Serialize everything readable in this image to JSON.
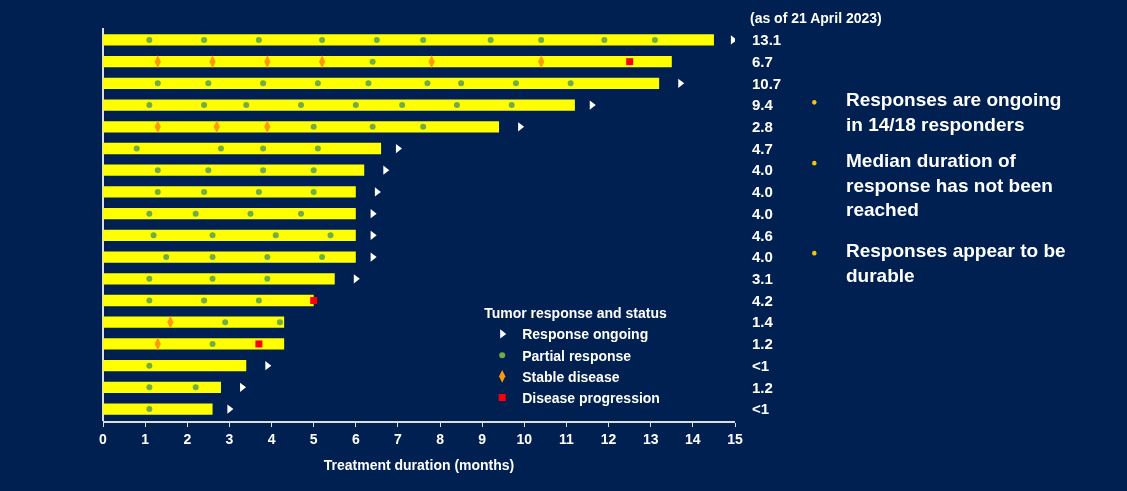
{
  "chart_data": {
    "type": "bar",
    "orientation": "horizontal",
    "categories": [
      "13.1",
      "6.7",
      "10.7",
      "9.4",
      "2.8",
      "4.7",
      "4.0",
      "4.0",
      "4.0",
      "4.6",
      "4.0",
      "3.1",
      "4.2",
      "1.4",
      "1.2",
      "<1",
      "1.2",
      "<1"
    ],
    "values": [
      14.5,
      13.5,
      13.2,
      11.2,
      9.4,
      6.6,
      6.2,
      6.0,
      6.0,
      6.0,
      6.0,
      5.5,
      5.0,
      4.3,
      4.3,
      3.4,
      2.8,
      2.6
    ],
    "color": "#ffff00",
    "xlim": [
      0,
      15
    ],
    "xticks": [
      0,
      1,
      2,
      3,
      4,
      5,
      6,
      7,
      8,
      9,
      10,
      11,
      12,
      13,
      14,
      15
    ],
    "xlabel": "Treatment duration (months)",
    "legend_title": "Tumor response and status",
    "legend": "bottom right",
    "grid": false,
    "series": [
      {
        "type": "scatter",
        "name": "Response ongoing",
        "color": "#ffffff",
        "marker": "triangle",
        "values": [
          14.95,
          null,
          13.7,
          11.6,
          9.9,
          7.0,
          6.7,
          6.5,
          6.4,
          6.4,
          6.4,
          6.0,
          null,
          null,
          null,
          3.9,
          3.3,
          3.0
        ]
      },
      {
        "type": "scatter",
        "name": "Partial response",
        "color": "#70ad47",
        "marker": "circle",
        "values": [
          1.1,
          6.4,
          1.3,
          1.1,
          5.0,
          0.8,
          1.3,
          1.3,
          1.1,
          1.2,
          1.5,
          1.1,
          1.1,
          2.9,
          2.6,
          1.1,
          1.1,
          1.1
        ]
      },
      {
        "type": "scatter",
        "color": "#70ad47",
        "marker": "circle",
        "values": [
          2.4,
          null,
          2.5,
          2.4,
          6.4,
          2.8,
          2.5,
          2.4,
          2.2,
          2.6,
          2.6,
          2.6,
          2.4,
          4.2,
          null,
          null,
          2.2,
          null
        ]
      },
      {
        "type": "scatter",
        "color": "#70ad47",
        "marker": "circle",
        "values": [
          3.7,
          null,
          3.8,
          3.4,
          7.6,
          3.8,
          3.8,
          3.7,
          3.5,
          4.1,
          3.9,
          3.9,
          3.7,
          null,
          null,
          null,
          null,
          null
        ]
      },
      {
        "type": "scatter",
        "color": "#70ad47",
        "marker": "circle",
        "values": [
          5.2,
          null,
          5.1,
          4.7,
          null,
          5.1,
          5.0,
          5.0,
          4.7,
          5.4,
          5.2,
          null,
          null,
          null,
          null,
          null,
          null,
          null
        ]
      },
      {
        "type": "scatter",
        "color": "#70ad47",
        "marker": "circle",
        "values": [
          6.5,
          null,
          6.3,
          6.0,
          null,
          null,
          null,
          null,
          null,
          null,
          null,
          null,
          null,
          null,
          null,
          null,
          null,
          null
        ]
      },
      {
        "type": "scatter",
        "color": "#70ad47",
        "marker": "circle",
        "values": [
          7.6,
          null,
          7.7,
          7.1,
          null,
          null,
          null,
          null,
          null,
          null,
          null,
          null,
          null,
          null,
          null,
          null,
          null,
          null
        ]
      },
      {
        "type": "scatter",
        "color": "#70ad47",
        "marker": "circle",
        "values": [
          9.2,
          null,
          8.5,
          8.4,
          null,
          null,
          null,
          null,
          null,
          null,
          null,
          null,
          null,
          null,
          null,
          null,
          null,
          null
        ]
      },
      {
        "type": "scatter",
        "color": "#70ad47",
        "marker": "circle",
        "values": [
          10.4,
          null,
          9.8,
          9.7,
          null,
          null,
          null,
          null,
          null,
          null,
          null,
          null,
          null,
          null,
          null,
          null,
          null,
          null
        ]
      },
      {
        "type": "scatter",
        "color": "#70ad47",
        "marker": "circle",
        "values": [
          11.9,
          null,
          11.1,
          null,
          null,
          null,
          null,
          null,
          null,
          null,
          null,
          null,
          null,
          null,
          null,
          null,
          null,
          null
        ]
      },
      {
        "type": "scatter",
        "color": "#70ad47",
        "marker": "circle",
        "values": [
          13.1,
          null,
          null,
          null,
          null,
          null,
          null,
          null,
          null,
          null,
          null,
          null,
          null,
          null,
          null,
          null,
          null,
          null
        ]
      },
      {
        "type": "scatter",
        "name": "Stable disease",
        "color": "#ff9900",
        "marker": "diamond",
        "values": [
          null,
          1.3,
          null,
          null,
          1.3,
          null,
          null,
          null,
          null,
          null,
          null,
          null,
          null,
          1.6,
          1.3,
          null,
          null,
          null
        ]
      },
      {
        "type": "scatter",
        "color": "#ff9900",
        "marker": "diamond",
        "values": [
          null,
          2.6,
          null,
          null,
          2.7,
          null,
          null,
          null,
          null,
          null,
          null,
          null,
          null,
          null,
          null,
          null,
          null,
          null
        ]
      },
      {
        "type": "scatter",
        "color": "#ff9900",
        "marker": "diamond",
        "values": [
          null,
          3.9,
          null,
          null,
          3.9,
          null,
          null,
          null,
          null,
          null,
          null,
          null,
          null,
          null,
          null,
          null,
          null,
          null
        ]
      },
      {
        "type": "scatter",
        "color": "#ff9900",
        "marker": "diamond",
        "values": [
          null,
          5.2,
          null,
          null,
          null,
          null,
          null,
          null,
          null,
          null,
          null,
          null,
          null,
          null,
          null,
          null,
          null,
          null
        ]
      },
      {
        "type": "scatter",
        "color": "#ff9900",
        "marker": "diamond",
        "values": [
          null,
          7.8,
          null,
          null,
          null,
          null,
          null,
          null,
          null,
          null,
          null,
          null,
          null,
          null,
          null,
          null,
          null,
          null
        ]
      },
      {
        "type": "scatter",
        "color": "#ff9900",
        "marker": "diamond",
        "values": [
          null,
          10.4,
          null,
          null,
          null,
          null,
          null,
          null,
          null,
          null,
          null,
          null,
          null,
          null,
          null,
          null,
          null,
          null
        ]
      },
      {
        "type": "scatter",
        "name": "Disease progression",
        "color": "#ff0000",
        "marker": "square",
        "values": [
          null,
          12.5,
          null,
          null,
          null,
          null,
          null,
          null,
          null,
          null,
          null,
          null,
          5.0,
          null,
          3.7,
          null,
          null,
          null
        ]
      }
    ],
    "annotations": [
      "(as of 21 April 2023)",
      "Responses are ongoing\nin 14/18 responders",
      "Median duration of\nresponse has not been\nreached",
      "Responses appear to be\ndurable"
    ]
  }
}
